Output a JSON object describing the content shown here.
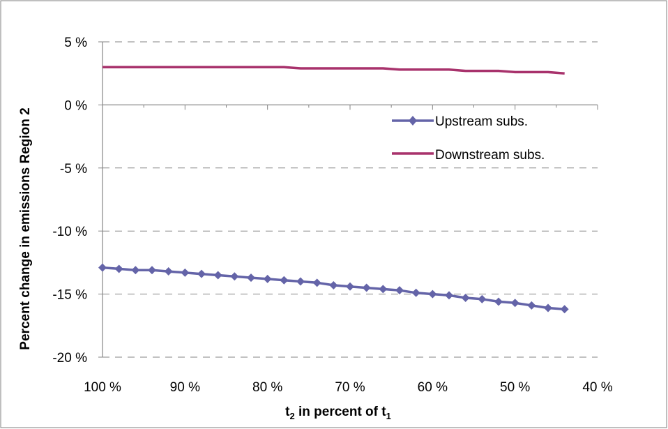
{
  "chart_data": {
    "type": "line",
    "xlabel_main": "t",
    "xlabel_sub2": "2",
    "xlabel_mid": " in percent of t",
    "xlabel_sub1": "1",
    "ylabel": "Percent change in emissions Region 2",
    "x_ticks": [
      "100 %",
      "90 %",
      "80 %",
      "70 %",
      "60 %",
      "50 %",
      "40 %"
    ],
    "y_ticks": [
      "5 %",
      "0 %",
      "-5 %",
      "-10 %",
      "-15 %",
      "-20 %"
    ],
    "xlim": [
      100,
      40
    ],
    "ylim": [
      -20,
      5
    ],
    "grid": "horizontal dashed",
    "legend_position": "right",
    "x": [
      100,
      98,
      96,
      94,
      92,
      90,
      88,
      86,
      84,
      82,
      80,
      78,
      76,
      74,
      72,
      70,
      68,
      66,
      64,
      62,
      60,
      58,
      56,
      54,
      52,
      50,
      48,
      46,
      44
    ],
    "series": [
      {
        "name": "Upstream subs.",
        "color": "#6464a8",
        "marker": "diamond",
        "values": [
          -12.9,
          -13.0,
          -13.1,
          -13.1,
          -13.2,
          -13.3,
          -13.4,
          -13.5,
          -13.6,
          -13.7,
          -13.8,
          -13.9,
          -14.0,
          -14.1,
          -14.3,
          -14.4,
          -14.5,
          -14.6,
          -14.7,
          -14.9,
          -15.0,
          -15.1,
          -15.3,
          -15.4,
          -15.6,
          -15.7,
          -15.9,
          -16.1,
          -16.2
        ]
      },
      {
        "name": "Downstream subs.",
        "color": "#a8326c",
        "marker": "none",
        "values": [
          3.0,
          3.0,
          3.0,
          3.0,
          3.0,
          3.0,
          3.0,
          3.0,
          3.0,
          3.0,
          3.0,
          3.0,
          2.9,
          2.9,
          2.9,
          2.9,
          2.9,
          2.9,
          2.8,
          2.8,
          2.8,
          2.8,
          2.7,
          2.7,
          2.7,
          2.6,
          2.6,
          2.6,
          2.5
        ]
      }
    ]
  }
}
